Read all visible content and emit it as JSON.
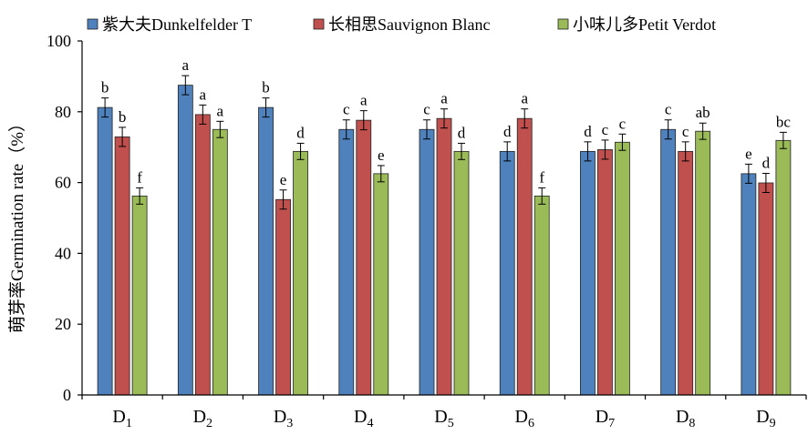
{
  "chart_data": {
    "type": "bar",
    "ylabel": "萌芽率Germination rate（%）",
    "xlabel": "",
    "ylim": [
      0,
      100
    ],
    "yticks": [
      0,
      20,
      40,
      60,
      80,
      100
    ],
    "grid": false,
    "legend_placement": "top",
    "categories": [
      {
        "base": "D",
        "sub": "1"
      },
      {
        "base": "D",
        "sub": "2"
      },
      {
        "base": "D",
        "sub": "3"
      },
      {
        "base": "D",
        "sub": "4"
      },
      {
        "base": "D",
        "sub": "5"
      },
      {
        "base": "D",
        "sub": "6"
      },
      {
        "base": "D",
        "sub": "7"
      },
      {
        "base": "D",
        "sub": "8"
      },
      {
        "base": "D",
        "sub": "9"
      }
    ],
    "series": [
      {
        "name": "紫大夫Dunkelfelder T",
        "color": "#4F81BD",
        "values": [
          81.2,
          87.5,
          81.2,
          75.0,
          75.0,
          68.8,
          68.8,
          75.0,
          62.5
        ],
        "errors": [
          2.7,
          2.7,
          2.7,
          2.7,
          2.7,
          2.7,
          2.7,
          2.7,
          2.7
        ],
        "letters": [
          "b",
          "a",
          "b",
          "c",
          "c",
          "d",
          "d",
          "c",
          "e"
        ]
      },
      {
        "name": "长相思Sauvignon Blanc",
        "color": "#C0504D",
        "values": [
          72.9,
          79.2,
          55.2,
          77.6,
          78.1,
          78.1,
          69.3,
          68.8,
          59.9
        ],
        "errors": [
          2.7,
          2.7,
          2.7,
          2.7,
          2.7,
          2.7,
          2.7,
          2.7,
          2.7
        ],
        "letters": [
          "b",
          "a",
          "e",
          "a",
          "a",
          "a",
          "c",
          "c",
          "d"
        ]
      },
      {
        "name": "小味儿多Petit Verdot",
        "color": "#9BBB59",
        "values": [
          56.2,
          75.0,
          68.8,
          62.5,
          68.8,
          56.2,
          71.4,
          74.5,
          71.9
        ],
        "errors": [
          2.3,
          2.3,
          2.3,
          2.3,
          2.3,
          2.3,
          2.3,
          2.3,
          2.3
        ],
        "letters": [
          "f",
          "a",
          "d",
          "e",
          "d",
          "f",
          "c",
          "ab",
          "bc"
        ]
      }
    ]
  }
}
